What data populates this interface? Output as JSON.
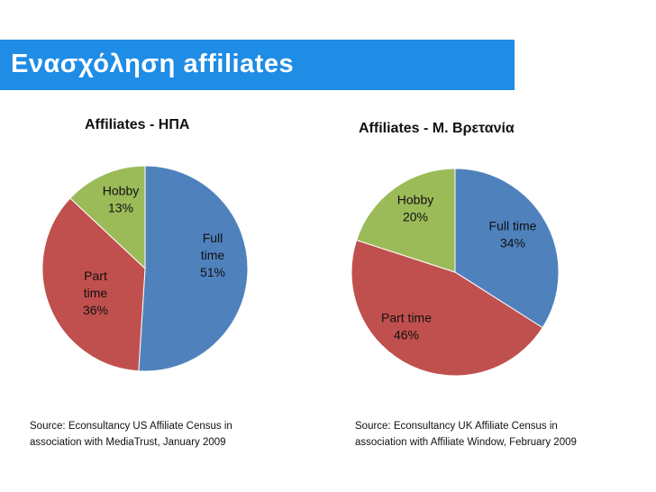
{
  "slide": {
    "title": "Ενασχόληση affiliates",
    "accent_color": "#1f8ce6"
  },
  "chart_data": [
    {
      "type": "pie",
      "title": "Affiliates - ΗΠΑ",
      "slices": [
        {
          "name": "Full time",
          "value": 51,
          "label_lines": [
            "Full",
            "time",
            "51%"
          ],
          "color": "#4f81bd"
        },
        {
          "name": "Part time",
          "value": 36,
          "label_lines": [
            "Part",
            "time",
            "36%"
          ],
          "color": "#c0504d"
        },
        {
          "name": "Hobby",
          "value": 13,
          "label_lines": [
            "Hobby",
            "13%"
          ],
          "color": "#9bbb59"
        }
      ],
      "source_lines": [
        "Source: Econsultancy US Affiliate Census in",
        "association with MediaTrust, January 2009"
      ]
    },
    {
      "type": "pie",
      "title": "Affiliates - Μ. Βρετανία",
      "slices": [
        {
          "name": "Full time",
          "value": 34,
          "label_lines": [
            "Full time",
            "34%"
          ],
          "color": "#4f81bd"
        },
        {
          "name": "Part time",
          "value": 46,
          "label_lines": [
            "Part time",
            "46%"
          ],
          "color": "#c0504d"
        },
        {
          "name": "Hobby",
          "value": 20,
          "label_lines": [
            "Hobby",
            "20%"
          ],
          "color": "#9bbb59"
        }
      ],
      "source_lines": [
        "Source: Econsultancy UK Affiliate Census in",
        "association with Affiliate Window, February 2009"
      ]
    }
  ]
}
